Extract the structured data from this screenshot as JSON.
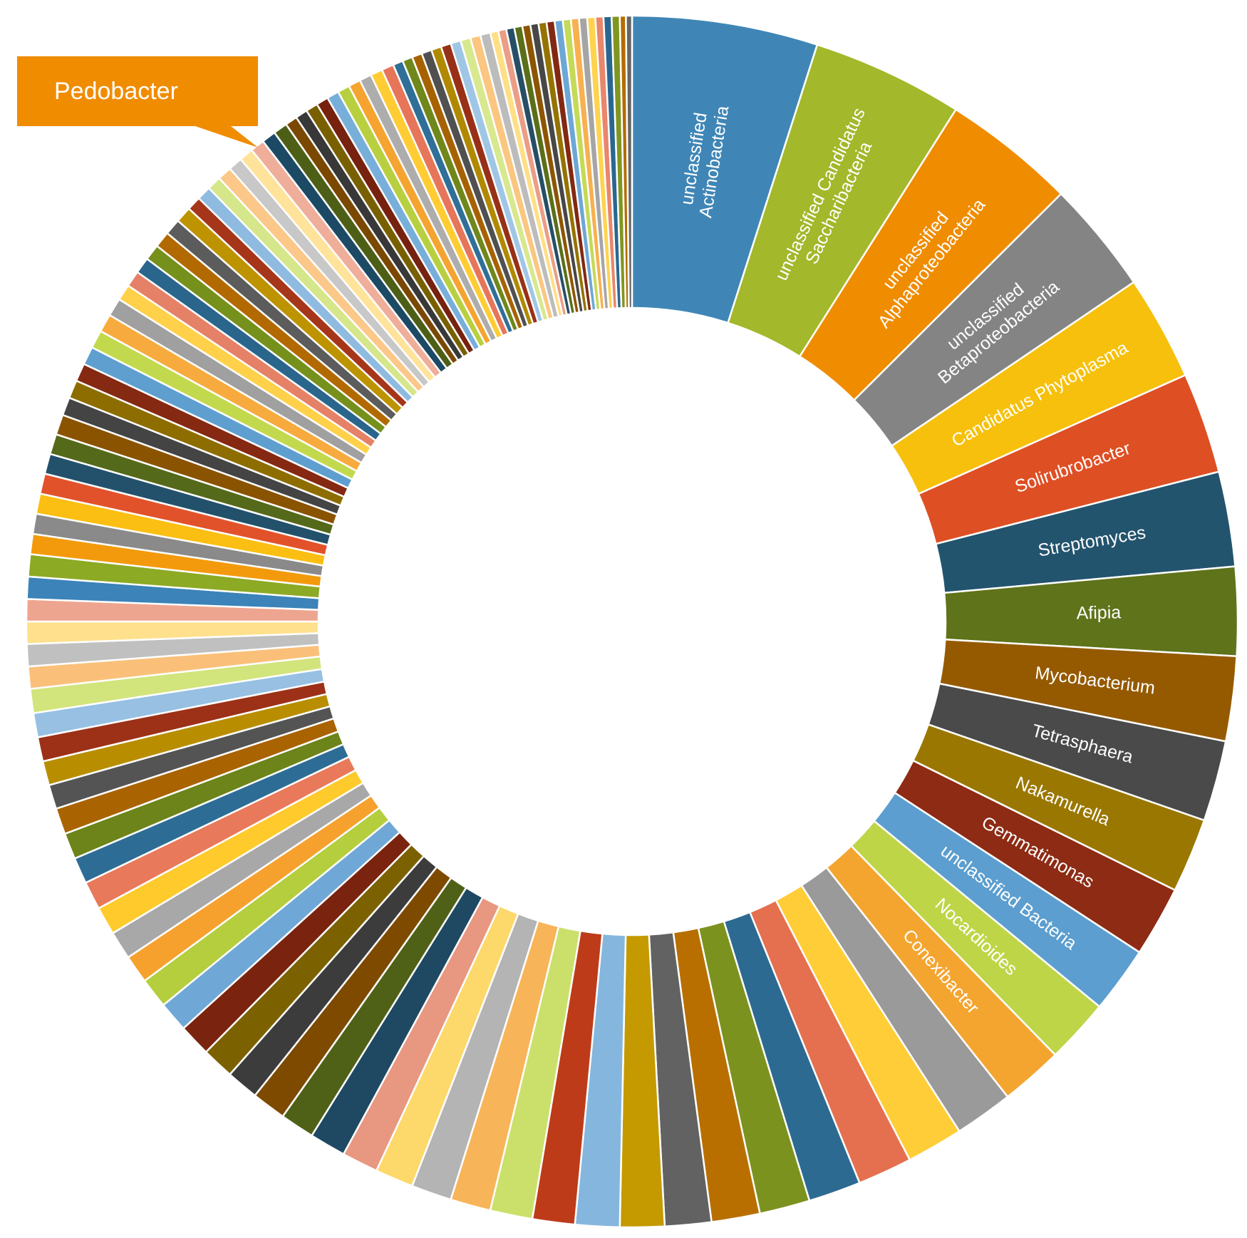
{
  "chart_data": {
    "type": "pie",
    "style": "doughnut",
    "title": "",
    "callout": {
      "label": "Pedobacter",
      "color": "#F08C00"
    },
    "slices": [
      {
        "label": "unclassified Actinobacteria",
        "value": 4.6,
        "color": "#3F86B6"
      },
      {
        "label": "unclassified Candidatus Saccharibacteria",
        "value": 3.75,
        "color": "#A3B82A"
      },
      {
        "label": "unclassified Alphaproteobacteria",
        "value": 3.3,
        "color": "#F08C00"
      },
      {
        "label": "unclassified Betaproteobacteria",
        "value": 2.8,
        "color": "#848484"
      },
      {
        "label": "Candidatus Phytoplasma",
        "value": 2.6,
        "color": "#F6C00C"
      },
      {
        "label": "Solirubrobacter",
        "value": 2.5,
        "color": "#DE4F24"
      },
      {
        "label": "Streptomyces",
        "value": 2.35,
        "color": "#23546E"
      },
      {
        "label": "Afipia",
        "value": 2.2,
        "color": "#5F731A"
      },
      {
        "label": "Mycobacterium",
        "value": 2.1,
        "color": "#955A00"
      },
      {
        "label": "Tetrasphaera",
        "value": 2.0,
        "color": "#4A4A4A"
      },
      {
        "label": "Nakamurella",
        "value": 1.85,
        "color": "#9A7700"
      },
      {
        "label": "Gemmatimonas",
        "value": 1.75,
        "color": "#8D2B14"
      },
      {
        "label": "unclassified Bacteria",
        "value": 1.65,
        "color": "#5C9ECF"
      },
      {
        "label": "Nocardioides",
        "value": 1.6,
        "color": "#BFD548"
      },
      {
        "label": "Conexibacter",
        "value": 1.55,
        "color": "#F4A530"
      },
      {
        "label": "",
        "value": 1.45,
        "color": "#9A9A9A"
      },
      {
        "label": "",
        "value": 1.4,
        "color": "#FFCD37"
      },
      {
        "label": "",
        "value": 1.35,
        "color": "#E4704F"
      },
      {
        "label": "",
        "value": 1.3,
        "color": "#2C6A92"
      },
      {
        "label": "",
        "value": 1.25,
        "color": "#7C921E"
      },
      {
        "label": "",
        "value": 1.2,
        "color": "#B86F00"
      },
      {
        "label": "",
        "value": 1.15,
        "color": "#626262"
      },
      {
        "label": "",
        "value": 1.1,
        "color": "#C49A00"
      },
      {
        "label": "",
        "value": 1.1,
        "color": "#85B6DE"
      },
      {
        "label": "",
        "value": 1.05,
        "color": "#BE3B1A"
      },
      {
        "label": "",
        "value": 1.05,
        "color": "#CBE06B"
      },
      {
        "label": "",
        "value": 1.0,
        "color": "#F8B458"
      },
      {
        "label": "",
        "value": 1.0,
        "color": "#B4B4B4"
      },
      {
        "label": "",
        "value": 0.95,
        "color": "#FDD86A"
      },
      {
        "label": "",
        "value": 0.9,
        "color": "#E89780"
      },
      {
        "label": "",
        "value": 0.9,
        "color": "#1F4962"
      },
      {
        "label": "",
        "value": 0.85,
        "color": "#4F6117"
      },
      {
        "label": "",
        "value": 0.85,
        "color": "#7E4A00"
      },
      {
        "label": "",
        "value": 0.8,
        "color": "#3C3C3C"
      },
      {
        "label": "",
        "value": 0.8,
        "color": "#7C6100"
      },
      {
        "label": "",
        "value": 0.8,
        "color": "#7A2410"
      },
      {
        "label": "",
        "value": 0.75,
        "color": "#6FA8D6"
      },
      {
        "label": "",
        "value": 0.75,
        "color": "#B4CE3E"
      },
      {
        "label": "",
        "value": 0.7,
        "color": "#F6A12E"
      },
      {
        "label": "",
        "value": 0.7,
        "color": "#A8A8A8"
      },
      {
        "label": "",
        "value": 0.7,
        "color": "#FFCA2C"
      },
      {
        "label": "",
        "value": 0.7,
        "color": "#E8795A"
      },
      {
        "label": "",
        "value": 0.65,
        "color": "#2D6D95"
      },
      {
        "label": "",
        "value": 0.65,
        "color": "#6C8419"
      },
      {
        "label": "",
        "value": 0.65,
        "color": "#A96300"
      },
      {
        "label": "",
        "value": 0.6,
        "color": "#545454"
      },
      {
        "label": "",
        "value": 0.6,
        "color": "#B88E00"
      },
      {
        "label": "",
        "value": 0.6,
        "color": "#9C3118"
      },
      {
        "label": "",
        "value": 0.6,
        "color": "#97C0E3"
      },
      {
        "label": "",
        "value": 0.6,
        "color": "#D2E47C"
      },
      {
        "label": "",
        "value": 0.55,
        "color": "#FAC07A"
      },
      {
        "label": "",
        "value": 0.55,
        "color": "#C0C0C0"
      },
      {
        "label": "",
        "value": 0.55,
        "color": "#FFE08C"
      },
      {
        "label": "",
        "value": 0.55,
        "color": "#EDA58F"
      },
      {
        "label": "",
        "value": 0.55,
        "color": "#3B83B8"
      },
      {
        "label": "",
        "value": 0.55,
        "color": "#8CAA24"
      },
      {
        "label": "",
        "value": 0.5,
        "color": "#F39A0C"
      },
      {
        "label": "",
        "value": 0.5,
        "color": "#8A8A8A"
      },
      {
        "label": "",
        "value": 0.5,
        "color": "#FBBF13"
      },
      {
        "label": "",
        "value": 0.5,
        "color": "#E2522A"
      },
      {
        "label": "",
        "value": 0.5,
        "color": "#23516B"
      },
      {
        "label": "",
        "value": 0.5,
        "color": "#55691A"
      },
      {
        "label": "",
        "value": 0.5,
        "color": "#8A5300"
      },
      {
        "label": "",
        "value": 0.45,
        "color": "#444444"
      },
      {
        "label": "",
        "value": 0.45,
        "color": "#8D6D00"
      },
      {
        "label": "",
        "value": 0.45,
        "color": "#862912"
      },
      {
        "label": "",
        "value": 0.45,
        "color": "#5E9FD0"
      },
      {
        "label": "",
        "value": 0.45,
        "color": "#C2D94E"
      },
      {
        "label": "",
        "value": 0.45,
        "color": "#F7AB3E"
      },
      {
        "label": "",
        "value": 0.45,
        "color": "#A0A0A0"
      },
      {
        "label": "",
        "value": 0.4,
        "color": "#FFD14A"
      },
      {
        "label": "",
        "value": 0.4,
        "color": "#E58166"
      },
      {
        "label": "",
        "value": 0.4,
        "color": "#2A658C"
      },
      {
        "label": "",
        "value": 0.4,
        "color": "#76901C"
      },
      {
        "label": "",
        "value": 0.4,
        "color": "#B26A00"
      },
      {
        "label": "",
        "value": 0.4,
        "color": "#5C5C5C"
      },
      {
        "label": "",
        "value": 0.4,
        "color": "#BD9300"
      },
      {
        "label": "",
        "value": 0.35,
        "color": "#A6361A"
      },
      {
        "label": "",
        "value": 0.35,
        "color": "#90BBE0"
      },
      {
        "label": "",
        "value": 0.35,
        "color": "#D6E68A"
      },
      {
        "label": "",
        "value": 0.35,
        "color": "#FBC889"
      },
      {
        "label": "",
        "value": 0.35,
        "color": "#C8C8C8"
      },
      {
        "label": "",
        "value": 0.35,
        "color": "#FFE39A"
      },
      {
        "label": "",
        "value": 0.35,
        "color": "#EFAE9A"
      },
      {
        "label": "",
        "value": 0.35,
        "color": "#1C4A65"
      },
      {
        "label": "",
        "value": 0.35,
        "color": "#4D5F16"
      },
      {
        "label": "",
        "value": 0.3,
        "color": "#7A4800"
      },
      {
        "label": "",
        "value": 0.3,
        "color": "#383838"
      },
      {
        "label": "",
        "value": 0.3,
        "color": "#786000"
      },
      {
        "label": "",
        "value": 0.3,
        "color": "#76220F"
      },
      {
        "label": "",
        "value": 0.3,
        "color": "#78AFDA"
      },
      {
        "label": "",
        "value": 0.3,
        "color": "#B8D040"
      },
      {
        "label": "",
        "value": 0.3,
        "color": "#F5A430"
      },
      {
        "label": "",
        "value": 0.3,
        "color": "#ADADAD"
      },
      {
        "label": "",
        "value": 0.3,
        "color": "#FFCC33"
      },
      {
        "label": "",
        "value": 0.3,
        "color": "#E7755A"
      },
      {
        "label": "",
        "value": 0.25,
        "color": "#2F6F98"
      },
      {
        "label": "",
        "value": 0.25,
        "color": "#6F871B"
      },
      {
        "label": "",
        "value": 0.25,
        "color": "#A66200"
      },
      {
        "label": "",
        "value": 0.25,
        "color": "#505050"
      },
      {
        "label": "",
        "value": 0.25,
        "color": "#B08900"
      },
      {
        "label": "",
        "value": 0.25,
        "color": "#983017"
      },
      {
        "label": "",
        "value": 0.25,
        "color": "#A0C6E6"
      },
      {
        "label": "",
        "value": 0.25,
        "color": "#D8E88F"
      },
      {
        "label": "",
        "value": 0.25,
        "color": "#FBC680"
      },
      {
        "label": "",
        "value": 0.25,
        "color": "#BCBCBC"
      },
      {
        "label": "",
        "value": 0.2,
        "color": "#FFDF85"
      },
      {
        "label": "",
        "value": 0.2,
        "color": "#EB9D85"
      },
      {
        "label": "",
        "value": 0.2,
        "color": "#264F66"
      },
      {
        "label": "",
        "value": 0.2,
        "color": "#5A6F18"
      },
      {
        "label": "",
        "value": 0.2,
        "color": "#8C5500"
      },
      {
        "label": "",
        "value": 0.2,
        "color": "#474747"
      },
      {
        "label": "",
        "value": 0.2,
        "color": "#947300"
      },
      {
        "label": "",
        "value": 0.2,
        "color": "#832812"
      },
      {
        "label": "",
        "value": 0.2,
        "color": "#6DA7D6"
      },
      {
        "label": "",
        "value": 0.2,
        "color": "#C5DA56"
      },
      {
        "label": "",
        "value": 0.2,
        "color": "#F8B050"
      },
      {
        "label": "",
        "value": 0.2,
        "color": "#A5A5A5"
      },
      {
        "label": "",
        "value": 0.2,
        "color": "#FFD34F"
      },
      {
        "label": "",
        "value": 0.2,
        "color": "#E9866C"
      },
      {
        "label": "",
        "value": 0.2,
        "color": "#2A6790"
      },
      {
        "label": "",
        "value": 0.2,
        "color": "#80961F"
      },
      {
        "label": "",
        "value": 0.15,
        "color": "#B46C00"
      },
      {
        "label": "",
        "value": 0.15,
        "color": "#666666"
      }
    ]
  }
}
